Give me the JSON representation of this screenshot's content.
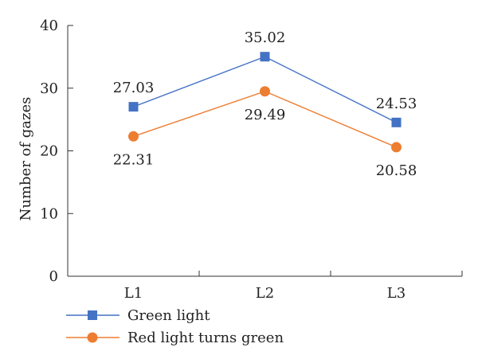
{
  "chart_data": {
    "type": "line",
    "categories": [
      "L1",
      "L2",
      "L3"
    ],
    "ylabel": "Number of gazes",
    "xlabel": "",
    "ylim": [
      0,
      40
    ],
    "yticks": [
      0,
      10,
      20,
      30,
      40
    ],
    "grid": false,
    "legend_position": "bottom-left",
    "series": [
      {
        "name": "Green light",
        "values": [
          27.03,
          35.02,
          24.53
        ],
        "labels": [
          "27.03",
          "35.02",
          "24.53"
        ],
        "label_position": "above",
        "color": "#4472c4",
        "marker": "square"
      },
      {
        "name": "Red light turns green",
        "values": [
          22.31,
          29.49,
          20.58
        ],
        "labels": [
          "22.31",
          "29.49",
          "20.58"
        ],
        "label_position": "below",
        "color": "#ed7d31",
        "marker": "circle"
      }
    ]
  }
}
